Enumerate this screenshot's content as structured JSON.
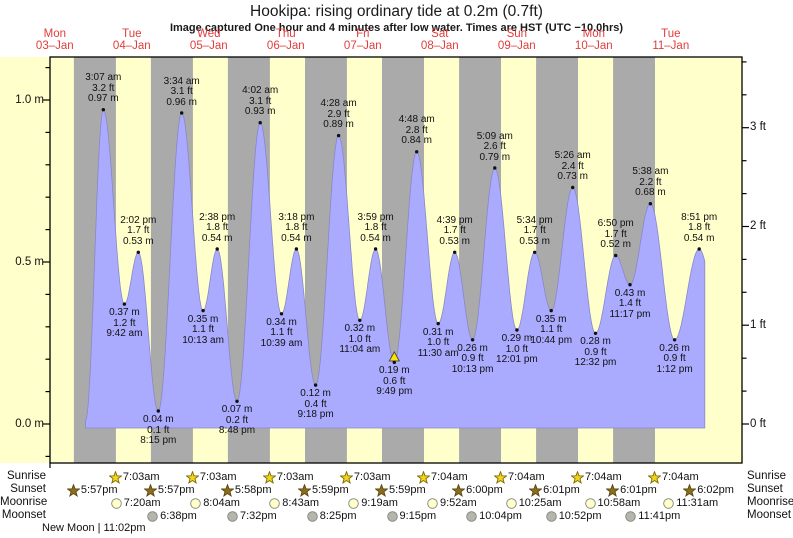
{
  "chart_data": {
    "type": "area",
    "title": "Hookipa: rising  ordinary tide at 0.2m (0.7ft)",
    "subtitle": "Image captured One hour and 4 minutes after low water. Times are HST (UTC −10.0hrs)",
    "days": [
      {
        "name": "Mon",
        "date": "03–Jan"
      },
      {
        "name": "Tue",
        "date": "04–Jan"
      },
      {
        "name": "Wed",
        "date": "05–Jan"
      },
      {
        "name": "Thu",
        "date": "06–Jan"
      },
      {
        "name": "Fri",
        "date": "07–Jan"
      },
      {
        "name": "Sat",
        "date": "08–Jan"
      },
      {
        "name": "Sun",
        "date": "09–Jan"
      },
      {
        "name": "Mon",
        "date": "10–Jan"
      },
      {
        "name": "Tue",
        "date": "11–Jan"
      }
    ],
    "y_axis_left_ticks": [
      "1.0 m",
      "0.5 m",
      "0.0 m"
    ],
    "y_axis_right_ticks": [
      "3 ft",
      "2 ft",
      "1 ft",
      "0 ft"
    ],
    "ylim_m": [
      -0.12,
      1.13
    ],
    "grid": false,
    "tides": [
      {
        "day": 1,
        "type": "high",
        "time": "3:07 am",
        "ft": "3.2 ft",
        "m": "0.97 m"
      },
      {
        "day": 1,
        "type": "low",
        "time": "9:42 am",
        "ft": "1.2 ft",
        "m": "0.37 m"
      },
      {
        "day": 1,
        "type": "high",
        "time": "2:02 pm",
        "ft": "1.7 ft",
        "m": "0.53 m"
      },
      {
        "day": 1,
        "type": "low",
        "time": "8:15 pm",
        "ft": "0.1 ft",
        "m": "0.04 m"
      },
      {
        "day": 2,
        "type": "high",
        "time": "3:34 am",
        "ft": "3.1 ft",
        "m": "0.96 m"
      },
      {
        "day": 2,
        "type": "low",
        "time": "10:13 am",
        "ft": "1.1 ft",
        "m": "0.35 m"
      },
      {
        "day": 2,
        "type": "high",
        "time": "2:38 pm",
        "ft": "1.8 ft",
        "m": "0.54 m"
      },
      {
        "day": 2,
        "type": "low",
        "time": "8:48 pm",
        "ft": "0.2 ft",
        "m": "0.07 m"
      },
      {
        "day": 3,
        "type": "high",
        "time": "4:02 am",
        "ft": "3.1 ft",
        "m": "0.93 m"
      },
      {
        "day": 3,
        "type": "low",
        "time": "10:39 am",
        "ft": "1.1 ft",
        "m": "0.34 m"
      },
      {
        "day": 3,
        "type": "high",
        "time": "3:18 pm",
        "ft": "1.8 ft",
        "m": "0.54 m"
      },
      {
        "day": 3,
        "type": "low",
        "time": "9:18 pm",
        "ft": "0.4 ft",
        "m": "0.12 m"
      },
      {
        "day": 4,
        "type": "high",
        "time": "4:28 am",
        "ft": "2.9 ft",
        "m": "0.89 m"
      },
      {
        "day": 4,
        "type": "low",
        "time": "11:04 am",
        "ft": "1.0 ft",
        "m": "0.32 m"
      },
      {
        "day": 4,
        "type": "high",
        "time": "3:59 pm",
        "ft": "1.8 ft",
        "m": "0.54 m"
      },
      {
        "day": 4,
        "type": "low",
        "time": "9:49 pm",
        "ft": "0.6 ft",
        "m": "0.19 m",
        "marker": true
      },
      {
        "day": 5,
        "type": "high",
        "time": "4:48 am",
        "ft": "2.8 ft",
        "m": "0.84 m"
      },
      {
        "day": 5,
        "type": "low",
        "time": "11:30 am",
        "ft": "1.0 ft",
        "m": "0.31 m"
      },
      {
        "day": 5,
        "type": "high",
        "time": "4:39 pm",
        "ft": "1.7 ft",
        "m": "0.53 m"
      },
      {
        "day": 5,
        "type": "low",
        "time": "10:13 pm",
        "ft": "0.9 ft",
        "m": "0.26 m"
      },
      {
        "day": 6,
        "type": "high",
        "time": "5:09 am",
        "ft": "2.6 ft",
        "m": "0.79 m"
      },
      {
        "day": 6,
        "type": "low",
        "time": "12:01 pm",
        "ft": "1.0 ft",
        "m": "0.29 m"
      },
      {
        "day": 6,
        "type": "high",
        "time": "5:34 pm",
        "ft": "1.7 ft",
        "m": "0.53 m"
      },
      {
        "day": 6,
        "type": "low",
        "time": "10:44 pm",
        "ft": "1.1 ft",
        "m": "0.35 m"
      },
      {
        "day": 7,
        "type": "high",
        "time": "5:26 am",
        "ft": "2.4 ft",
        "m": "0.73 m"
      },
      {
        "day": 7,
        "type": "low",
        "time": "12:32 pm",
        "ft": "0.9 ft",
        "m": "0.28 m"
      },
      {
        "day": 7,
        "type": "high",
        "time": "6:50 pm",
        "ft": "1.7 ft",
        "m": "0.52 m"
      },
      {
        "day": 7,
        "type": "low",
        "time": "11:17 pm",
        "ft": "1.4 ft",
        "m": "0.43 m"
      },
      {
        "day": 8,
        "type": "high",
        "time": "5:38 am",
        "ft": "2.2 ft",
        "m": "0.68 m"
      },
      {
        "day": 8,
        "type": "low",
        "time": "1:12 pm",
        "ft": "0.9 ft",
        "m": "0.26 m"
      },
      {
        "day": 8,
        "type": "high",
        "time": "8:51 pm",
        "ft": "1.8 ft",
        "m": "0.54 m"
      }
    ],
    "colors": {
      "day_band": "#ffffcc",
      "night_band": "#aaaaaa",
      "tide_fill": "#aaaaff",
      "tide_stroke": "#8888c8",
      "day_label_red": "#e23c3c",
      "marker_yellow": "#ffe400",
      "sunrise_star": "#f2d41c",
      "sunset_star": "#8a6d1e",
      "moonrise_circle": "#ffffcc",
      "moonset_circle": "#b5b5ad"
    }
  },
  "astro": {
    "rows": [
      {
        "id": "sunrise",
        "label": "Sunrise",
        "icon": "sunrise-star-icon",
        "events": [
          {
            "day": 1,
            "time": "7:03am"
          },
          {
            "day": 2,
            "time": "7:03am"
          },
          {
            "day": 3,
            "time": "7:03am"
          },
          {
            "day": 4,
            "time": "7:03am"
          },
          {
            "day": 5,
            "time": "7:04am"
          },
          {
            "day": 6,
            "time": "7:04am"
          },
          {
            "day": 7,
            "time": "7:04am"
          },
          {
            "day": 8,
            "time": "7:04am"
          }
        ]
      },
      {
        "id": "sunset",
        "label": "Sunset",
        "icon": "sunset-star-icon",
        "events": [
          {
            "day": 0,
            "time": "5:57pm"
          },
          {
            "day": 1,
            "time": "5:57pm"
          },
          {
            "day": 2,
            "time": "5:58pm"
          },
          {
            "day": 3,
            "time": "5:59pm"
          },
          {
            "day": 4,
            "time": "5:59pm"
          },
          {
            "day": 5,
            "time": "6:00pm"
          },
          {
            "day": 6,
            "time": "6:01pm"
          },
          {
            "day": 7,
            "time": "6:01pm"
          },
          {
            "day": 8,
            "time": "6:02pm"
          }
        ]
      },
      {
        "id": "moonrise",
        "label": "Moonrise",
        "icon": "moonrise-circle-icon",
        "events": [
          {
            "day": 1,
            "time": "7:20am"
          },
          {
            "day": 2,
            "time": "8:04am"
          },
          {
            "day": 3,
            "time": "8:43am"
          },
          {
            "day": 4,
            "time": "9:19am"
          },
          {
            "day": 5,
            "time": "9:52am"
          },
          {
            "day": 6,
            "time": "10:25am"
          },
          {
            "day": 7,
            "time": "10:58am"
          },
          {
            "day": 8,
            "time": "11:31am"
          }
        ]
      },
      {
        "id": "moonset",
        "label": "Moonset",
        "icon": "moonset-circle-icon",
        "events": [
          {
            "day": 1,
            "time": "6:38pm"
          },
          {
            "day": 2,
            "time": "7:32pm"
          },
          {
            "day": 3,
            "time": "8:25pm"
          },
          {
            "day": 4,
            "time": "9:15pm"
          },
          {
            "day": 5,
            "time": "10:04pm"
          },
          {
            "day": 6,
            "time": "10:52pm"
          },
          {
            "day": 7,
            "time": "11:41pm"
          }
        ]
      }
    ],
    "moon_phase": {
      "text": "New Moon | 11:02pm"
    }
  }
}
